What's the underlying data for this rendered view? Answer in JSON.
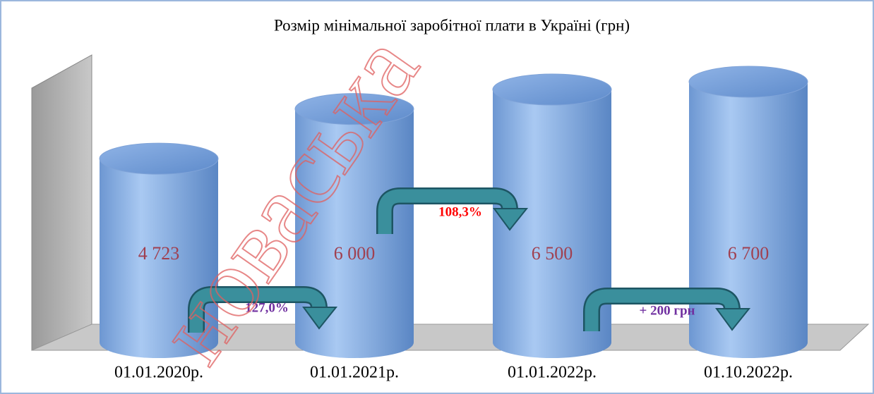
{
  "chart_data": {
    "type": "bar",
    "title": "Розмір мінімальної заробітної плати в Україні (грн)",
    "categories": [
      "01.01.2020р.",
      "01.01.2021р.",
      "01.01.2022р.",
      "01.10.2022р."
    ],
    "values": [
      4723,
      6000,
      6500,
      6700
    ],
    "value_labels": [
      "4 723",
      "6 000",
      "6 500",
      "6 700"
    ],
    "color": "#7fa8e0",
    "label_color": "#a04050",
    "annotations": [
      {
        "text": "127,0%",
        "color": "#7030a0"
      },
      {
        "text": "108,3%",
        "color": "#ff0000"
      },
      {
        "text": "+ 200 грн",
        "color": "#7030a0"
      }
    ],
    "watermark": "новаська"
  }
}
